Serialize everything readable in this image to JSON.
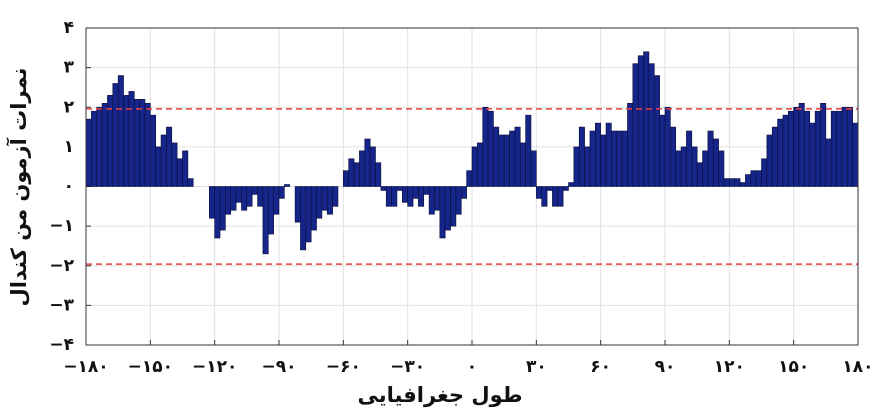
{
  "chart_data": {
    "type": "histogram",
    "xlabel": "طول جغرافیایی",
    "ylabel": "نمرات آزمون من کندال",
    "bins": [
      -180,
      -177.5,
      -175,
      -172.5,
      -170,
      -167.5,
      -165,
      -162.5,
      -160,
      -157.5,
      -155,
      -152.5,
      -150,
      -147.5,
      -145,
      -142.5,
      -140,
      -137.5,
      -135,
      -132.5,
      -130,
      -127.5,
      -125,
      -122.5,
      -120,
      -117.5,
      -115,
      -112.5,
      -110,
      -107.5,
      -105,
      -102.5,
      -100,
      -97.5,
      -95,
      -92.5,
      -90,
      -87.5,
      -85,
      -82.5,
      -80,
      -77.5,
      -75,
      -72.5,
      -70,
      -67.5,
      -65,
      -62.5,
      -60,
      -57.5,
      -55,
      -52.5,
      -50,
      -47.5,
      -45,
      -42.5,
      -40,
      -37.5,
      -35,
      -32.5,
      -30,
      -27.5,
      -25,
      -22.5,
      -20,
      -17.5,
      -15,
      -12.5,
      -10,
      -7.5,
      -5,
      -2.5,
      0,
      2.5,
      5,
      7.5,
      10,
      12.5,
      15,
      17.5,
      20,
      22.5,
      25,
      27.5,
      30,
      32.5,
      35,
      37.5,
      40,
      42.5,
      45,
      47.5,
      50,
      52.5,
      55,
      57.5,
      60,
      62.5,
      65,
      67.5,
      70,
      72.5,
      75,
      77.5,
      80,
      82.5,
      85,
      87.5,
      90,
      92.5,
      95,
      97.5,
      100,
      102.5,
      105,
      107.5,
      110,
      112.5,
      115,
      117.5,
      120,
      122.5,
      125,
      127.5,
      130,
      132.5,
      135,
      137.5,
      140,
      142.5,
      145,
      147.5,
      150,
      152.5,
      155,
      157.5,
      160,
      162.5,
      165,
      167.5,
      170,
      172.5,
      175,
      177.5,
      180
    ],
    "values": [
      1.7,
      1.9,
      2.0,
      2.1,
      2.3,
      2.6,
      2.8,
      2.3,
      2.4,
      2.2,
      2.2,
      2.1,
      1.8,
      1.0,
      1.3,
      1.5,
      1.1,
      0.7,
      0.9,
      0.2,
      0,
      0,
      0,
      -0.8,
      -1.3,
      -1.1,
      -0.7,
      -0.6,
      -0.4,
      -0.6,
      -0.5,
      -0.2,
      -0.5,
      -1.7,
      -1.2,
      -0.7,
      -0.3,
      0.05,
      0,
      -0.9,
      -1.6,
      -1.4,
      -1.1,
      -0.8,
      -0.6,
      -0.7,
      -0.5,
      0,
      0.4,
      0.7,
      0.6,
      0.9,
      1.2,
      1.0,
      0.6,
      -0.1,
      -0.5,
      -0.5,
      -0.1,
      -0.4,
      -0.5,
      -0.3,
      -0.5,
      -0.2,
      -0.7,
      -0.6,
      -1.3,
      -1.1,
      -1.0,
      -0.7,
      -0.3,
      0.4,
      1.0,
      1.1,
      2.0,
      1.9,
      1.5,
      1.3,
      1.3,
      1.4,
      1.5,
      1.1,
      1.8,
      0.9,
      -0.3,
      -0.5,
      -0.1,
      -0.5,
      -0.5,
      -0.1,
      0.1,
      1.0,
      1.5,
      1.0,
      1.4,
      1.6,
      1.3,
      1.6,
      1.4,
      1.4,
      1.4,
      2.1,
      3.1,
      3.3,
      3.4,
      3.1,
      2.8,
      1.8,
      2.0,
      1.5,
      0.9,
      1.0,
      1.4,
      1.0,
      0.6,
      0.9,
      1.4,
      1.2,
      0.9,
      0.2,
      0.2,
      0.2,
      0.1,
      0.3,
      0.4,
      0.4,
      0.7,
      1.3,
      1.5,
      1.7,
      1.8,
      1.9,
      2.0,
      2.1,
      1.9,
      1.6,
      1.9,
      2.1,
      1.2,
      1.9,
      1.9,
      2.0,
      2.0,
      1.6
    ],
    "color": "#16258a",
    "reference_lines": [
      1.96,
      -1.96
    ],
    "reference_color": "#e8413c",
    "grid": true,
    "xlim": [
      -180,
      180
    ],
    "xticks": [
      {
        "value": -180,
        "label": "−۱۸۰"
      },
      {
        "value": -150,
        "label": "−۱۵۰"
      },
      {
        "value": -120,
        "label": "−۱۲۰"
      },
      {
        "value": -90,
        "label": "−۹۰"
      },
      {
        "value": -60,
        "label": "−۶۰"
      },
      {
        "value": -30,
        "label": "−۳۰"
      },
      {
        "value": 0,
        "label": "۰"
      },
      {
        "value": 30,
        "label": "۳۰"
      },
      {
        "value": 60,
        "label": "۶۰"
      },
      {
        "value": 90,
        "label": "۹۰"
      },
      {
        "value": 120,
        "label": "۱۲۰"
      },
      {
        "value": 150,
        "label": "۱۵۰"
      },
      {
        "value": 180,
        "label": "۱۸۰"
      }
    ],
    "ylim": [
      -4,
      4
    ],
    "yticks": [
      {
        "value": -4,
        "label": "−۴"
      },
      {
        "value": -3,
        "label": "−۳"
      },
      {
        "value": -2,
        "label": "−۲"
      },
      {
        "value": -1,
        "label": "−۱"
      },
      {
        "value": 0,
        "label": "۰"
      },
      {
        "value": 1,
        "label": "۱"
      },
      {
        "value": 2,
        "label": "۲"
      },
      {
        "value": 3,
        "label": "۳"
      },
      {
        "value": 4,
        "label": "۴"
      }
    ]
  }
}
